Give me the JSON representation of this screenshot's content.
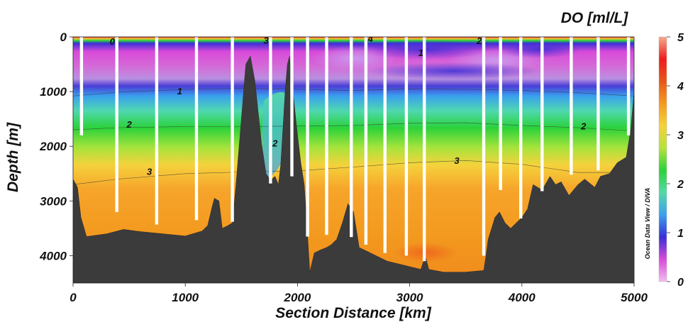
{
  "chart_data": {
    "type": "heatmap",
    "title": "DO [ml/L]",
    "xlabel": "Section Distance [km]",
    "ylabel": "Depth [m]",
    "xlim": [
      0,
      5000
    ],
    "ylim": [
      4500,
      0
    ],
    "x_ticks": [
      "0",
      "1000",
      "2000",
      "3000",
      "4000",
      "5000"
    ],
    "x_tick_values": [
      0,
      1000,
      2000,
      3000,
      4000,
      5000
    ],
    "y_ticks": [
      "0",
      "1000",
      "2000",
      "3000",
      "4000"
    ],
    "y_tick_values": [
      0,
      1000,
      2000,
      3000,
      4000
    ],
    "colorbar": {
      "ticks": [
        "0",
        "1",
        "2",
        "3",
        "4",
        "5"
      ],
      "tick_values": [
        0,
        1,
        2,
        3,
        4,
        5
      ],
      "range": [
        0,
        5
      ],
      "colors": [
        "#f2bdf2",
        "#d94ad9",
        "#3a2fd6",
        "#3aa0ef",
        "#55d8a8",
        "#2bd23a",
        "#b5e23c",
        "#f5d23c",
        "#f39a1f",
        "#e8571a",
        "#ee1c1c",
        "#f7a98c"
      ]
    },
    "credit": "Ocean Data View / DIVA",
    "contours": [
      {
        "level": "1",
        "depth_profile": [
          [
            0,
            1080
          ],
          [
            400,
            1010
          ],
          [
            1000,
            960
          ],
          [
            1500,
            940
          ],
          [
            2000,
            960
          ],
          [
            2500,
            980
          ],
          [
            3000,
            950
          ],
          [
            3500,
            960
          ],
          [
            4000,
            980
          ],
          [
            4500,
            1020
          ],
          [
            5000,
            1080
          ]
        ]
      },
      {
        "level": "2",
        "depth_profile": [
          [
            0,
            1700
          ],
          [
            400,
            1660
          ],
          [
            1000,
            1640
          ],
          [
            1500,
            1640
          ],
          [
            2500,
            1620
          ],
          [
            3000,
            1580
          ],
          [
            3500,
            1570
          ],
          [
            4000,
            1620
          ],
          [
            4500,
            1660
          ],
          [
            5000,
            1720
          ]
        ]
      },
      {
        "level": "3",
        "depth_profile": [
          [
            0,
            2700
          ],
          [
            400,
            2600
          ],
          [
            1000,
            2500
          ],
          [
            1500,
            2470
          ],
          [
            2000,
            2450
          ],
          [
            2500,
            2380
          ],
          [
            3000,
            2300
          ],
          [
            3500,
            2260
          ],
          [
            4000,
            2330
          ],
          [
            4500,
            2480
          ],
          [
            5000,
            2480
          ]
        ]
      }
    ],
    "contour_labels": [
      {
        "text": "0",
        "x": 350,
        "depth": 90
      },
      {
        "text": "3",
        "x": 1720,
        "depth": 70
      },
      {
        "text": "4",
        "x": 2650,
        "depth": 40
      },
      {
        "text": "2",
        "x": 3620,
        "depth": 80
      },
      {
        "text": "1",
        "x": 3100,
        "depth": 300
      },
      {
        "text": "1",
        "x": 950,
        "depth": 1000
      },
      {
        "text": "2",
        "x": 500,
        "depth": 1610
      },
      {
        "text": "2",
        "x": 1800,
        "depth": 1950
      },
      {
        "text": "2",
        "x": 4550,
        "depth": 1640
      },
      {
        "text": "3",
        "x": 680,
        "depth": 2470
      },
      {
        "text": "3",
        "x": 3420,
        "depth": 2270
      }
    ],
    "stations": [
      {
        "x": 75,
        "bottom_depth": 1800
      },
      {
        "x": 390,
        "bottom_depth": 3200
      },
      {
        "x": 745,
        "bottom_depth": 3430
      },
      {
        "x": 1100,
        "bottom_depth": 3350
      },
      {
        "x": 1420,
        "bottom_depth": 3380
      },
      {
        "x": 1760,
        "bottom_depth": 2680
      },
      {
        "x": 1950,
        "bottom_depth": 2550
      },
      {
        "x": 2090,
        "bottom_depth": 3650
      },
      {
        "x": 2260,
        "bottom_depth": 3620
      },
      {
        "x": 2480,
        "bottom_depth": 3660
      },
      {
        "x": 2610,
        "bottom_depth": 3800
      },
      {
        "x": 2780,
        "bottom_depth": 3950
      },
      {
        "x": 2970,
        "bottom_depth": 4000
      },
      {
        "x": 3130,
        "bottom_depth": 4100
      },
      {
        "x": 3660,
        "bottom_depth": 4000
      },
      {
        "x": 3810,
        "bottom_depth": 2800
      },
      {
        "x": 3990,
        "bottom_depth": 3320
      },
      {
        "x": 4180,
        "bottom_depth": 2820
      },
      {
        "x": 4440,
        "bottom_depth": 2520
      },
      {
        "x": 4680,
        "bottom_depth": 2440
      },
      {
        "x": 4950,
        "bottom_depth": 1800
      }
    ],
    "bathymetry": [
      [
        0,
        2600
      ],
      [
        40,
        2750
      ],
      [
        70,
        3300
      ],
      [
        120,
        3650
      ],
      [
        300,
        3600
      ],
      [
        450,
        3520
      ],
      [
        600,
        3560
      ],
      [
        800,
        3600
      ],
      [
        1000,
        3640
      ],
      [
        1150,
        3550
      ],
      [
        1200,
        3450
      ],
      [
        1240,
        3100
      ],
      [
        1260,
        2950
      ],
      [
        1300,
        3000
      ],
      [
        1330,
        3500
      ],
      [
        1380,
        3450
      ],
      [
        1420,
        3400
      ],
      [
        1450,
        2750
      ],
      [
        1500,
        1500
      ],
      [
        1540,
        500
      ],
      [
        1580,
        350
      ],
      [
        1620,
        800
      ],
      [
        1680,
        1950
      ],
      [
        1720,
        2500
      ],
      [
        1760,
        2620
      ],
      [
        1800,
        2550
      ],
      [
        1830,
        2700
      ],
      [
        1850,
        2350
      ],
      [
        1870,
        1700
      ],
      [
        1890,
        1000
      ],
      [
        1910,
        500
      ],
      [
        1930,
        350
      ],
      [
        1950,
        800
      ],
      [
        1990,
        1600
      ],
      [
        2030,
        2300
      ],
      [
        2060,
        2700
      ],
      [
        2080,
        3300
      ],
      [
        2110,
        4300
      ],
      [
        2150,
        3950
      ],
      [
        2200,
        3900
      ],
      [
        2260,
        3850
      ],
      [
        2300,
        3800
      ],
      [
        2350,
        3700
      ],
      [
        2400,
        3400
      ],
      [
        2450,
        3050
      ],
      [
        2500,
        3200
      ],
      [
        2550,
        3850
      ],
      [
        2600,
        3900
      ],
      [
        2700,
        4000
      ],
      [
        2800,
        4100
      ],
      [
        2900,
        4150
      ],
      [
        3000,
        4200
      ],
      [
        3100,
        4250
      ],
      [
        3140,
        4000
      ],
      [
        3170,
        4250
      ],
      [
        3300,
        4300
      ],
      [
        3500,
        4300
      ],
      [
        3660,
        4270
      ],
      [
        3680,
        4000
      ],
      [
        3700,
        3700
      ],
      [
        3730,
        3500
      ],
      [
        3760,
        3300
      ],
      [
        3800,
        3200
      ],
      [
        3850,
        3400
      ],
      [
        3900,
        3500
      ],
      [
        4000,
        3300
      ],
      [
        4050,
        3150
      ],
      [
        4100,
        2700
      ],
      [
        4180,
        2800
      ],
      [
        4250,
        2550
      ],
      [
        4300,
        2700
      ],
      [
        4350,
        2650
      ],
      [
        4420,
        2900
      ],
      [
        4500,
        2700
      ],
      [
        4560,
        2600
      ],
      [
        4650,
        2750
      ],
      [
        4700,
        2550
      ],
      [
        4780,
        2500
      ],
      [
        4850,
        2300
      ],
      [
        4930,
        2200
      ],
      [
        4970,
        1700
      ],
      [
        5000,
        1000
      ]
    ]
  }
}
